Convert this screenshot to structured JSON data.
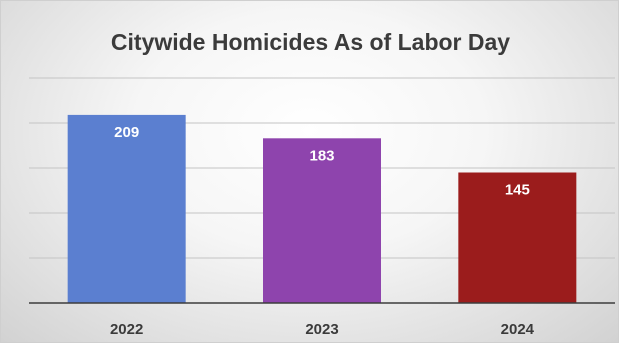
{
  "chart_data": {
    "type": "bar",
    "title": "Citywide Homicides As of Labor Day",
    "categories": [
      "2022",
      "2023",
      "2024"
    ],
    "values": [
      209,
      183,
      145
    ],
    "data_labels": [
      "209",
      "183",
      "145"
    ],
    "xlabel": "",
    "ylabel": "",
    "ylim": [
      0,
      250
    ],
    "grid": true,
    "legend": "none",
    "colors": [
      "#5b7fd0",
      "#8e44ad",
      "#9b1c1c"
    ]
  }
}
